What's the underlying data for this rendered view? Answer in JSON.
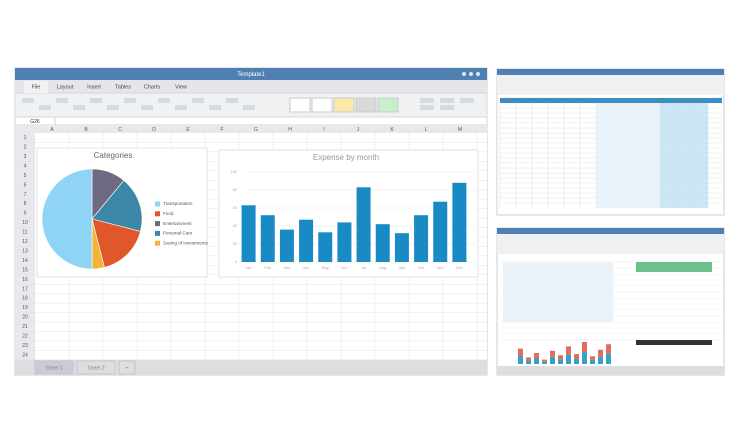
{
  "window": {
    "title": "Template1",
    "tabs": [
      "File",
      "Layout",
      "Insert",
      "Tables",
      "Charts",
      "View"
    ],
    "cell_ref": "G26",
    "columns": [
      "A",
      "B",
      "C",
      "D",
      "E",
      "F",
      "G",
      "H",
      "I",
      "J",
      "K",
      "L",
      "M"
    ],
    "rows": [
      "1",
      "2",
      "3",
      "4",
      "5",
      "6",
      "7",
      "8",
      "9",
      "10",
      "11",
      "12",
      "13",
      "14",
      "15",
      "16",
      "17",
      "18",
      "19",
      "20",
      "21",
      "22",
      "23",
      "24"
    ],
    "sheet_tabs": [
      "Sheet 1",
      "Sheet 2",
      "+"
    ]
  },
  "charts": [
    {
      "type": "pie",
      "title": "Categories",
      "categories": [
        "Transportation",
        "Food",
        "Entertainment",
        "Personal Care",
        "Saving of investments"
      ],
      "values": [
        50,
        17,
        11,
        18,
        4
      ],
      "colors": [
        "#8fd4f4",
        "#e0572a",
        "#6d6a82",
        "#3b87a8",
        "#f2b53a"
      ]
    },
    {
      "type": "bar",
      "title": "Expense by month",
      "categories": [
        "Jan",
        "Feb",
        "Mar",
        "Apr",
        "May",
        "Jun",
        "Jul",
        "Aug",
        "Sep",
        "Oct",
        "Nov",
        "Dec"
      ],
      "values": [
        63,
        52,
        36,
        47,
        33,
        44,
        83,
        42,
        32,
        52,
        67,
        88
      ],
      "color": "#1a8ac4",
      "ylim": [
        0,
        100
      ],
      "yticks": [
        0,
        20,
        40,
        60,
        80,
        100
      ],
      "grid": true
    }
  ]
}
